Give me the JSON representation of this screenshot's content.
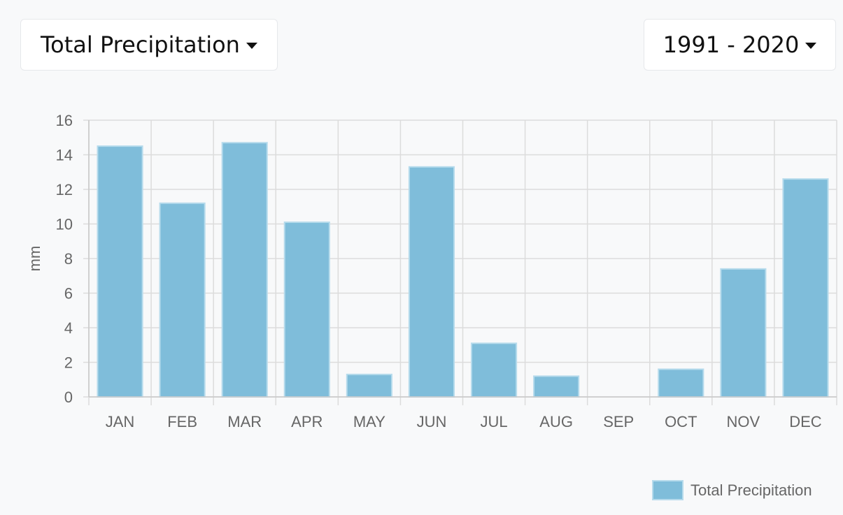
{
  "controls": {
    "metric_label": "Total Precipitation",
    "period_label": "1991 - 2020"
  },
  "colors": {
    "bar_fill": "#7fbdda",
    "bar_border": "#b6dbec",
    "grid": "#dcdcdc",
    "background": "#f8f9fa"
  },
  "chart_data": {
    "type": "bar",
    "categories": [
      "JAN",
      "FEB",
      "MAR",
      "APR",
      "MAY",
      "JUN",
      "JUL",
      "AUG",
      "SEP",
      "OCT",
      "NOV",
      "DEC"
    ],
    "series": [
      {
        "name": "Total Precipitation",
        "values": [
          14.5,
          11.2,
          14.7,
          10.1,
          1.3,
          13.3,
          3.1,
          1.2,
          0,
          1.6,
          7.4,
          12.6
        ]
      }
    ],
    "ylabel": "mm",
    "ylim": [
      0,
      16
    ],
    "yticks": [
      0,
      2,
      4,
      6,
      8,
      10,
      12,
      14,
      16
    ],
    "grid": true,
    "legend_position": "bottom-right"
  }
}
